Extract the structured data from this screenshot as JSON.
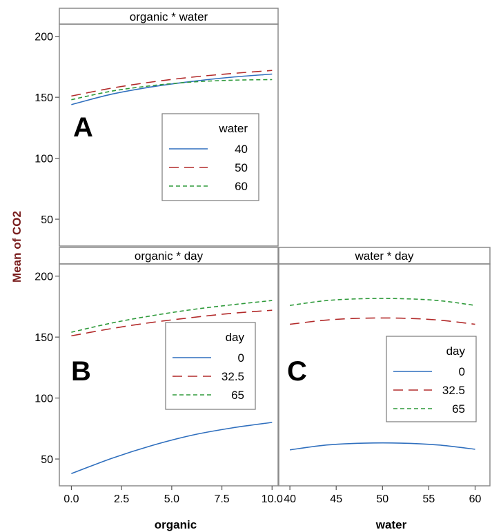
{
  "y_axis_label": "Mean of CO2",
  "x_axis_labels": {
    "organic": "organic",
    "water": "water"
  },
  "chart_data": [
    {
      "panel": "A",
      "type": "line",
      "title": "organic * water",
      "x_var": "organic",
      "xlim": [
        -0.6,
        10.3
      ],
      "ylim": [
        28,
        210
      ],
      "yticks": [
        50,
        100,
        150,
        200
      ],
      "legend": {
        "title": "water",
        "placement": "lower-right"
      },
      "series": [
        {
          "name": "40",
          "color": "#2f6fbe",
          "dash": "solid",
          "x": [
            0,
            2,
            4,
            6,
            8,
            10
          ],
          "y": [
            144,
            152.5,
            158.5,
            163,
            166.5,
            169
          ]
        },
        {
          "name": "50",
          "color": "#b22a2a",
          "dash": "long",
          "x": [
            0,
            2,
            4,
            6,
            8,
            10
          ],
          "y": [
            151,
            157.5,
            162.5,
            166.5,
            169.5,
            172
          ]
        },
        {
          "name": "60",
          "color": "#2e9a3a",
          "dash": "short",
          "x": [
            0,
            2,
            4,
            6,
            8,
            10
          ],
          "y": [
            148,
            155,
            159.5,
            162.5,
            164,
            164.5
          ]
        }
      ]
    },
    {
      "panel": "B",
      "type": "line",
      "title": "organic * day",
      "x_var": "organic",
      "xlabel": "organic",
      "xlim": [
        -0.6,
        10.3
      ],
      "ylim": [
        28,
        210
      ],
      "yticks": [
        50,
        100,
        150,
        200
      ],
      "xticks": [
        "0.0",
        "2.5",
        "5.0",
        "7.5",
        "10.0"
      ],
      "legend": {
        "title": "day",
        "placement": "right"
      },
      "series": [
        {
          "name": "0",
          "color": "#2f6fbe",
          "dash": "solid",
          "x": [
            0,
            2,
            4,
            6,
            8,
            10
          ],
          "y": [
            38,
            50.5,
            61,
            69.5,
            75.5,
            80
          ]
        },
        {
          "name": "32.5",
          "color": "#b22a2a",
          "dash": "long",
          "x": [
            0,
            2,
            4,
            6,
            8,
            10
          ],
          "y": [
            151,
            157,
            162,
            166,
            169.5,
            172
          ]
        },
        {
          "name": "65",
          "color": "#2e9a3a",
          "dash": "short",
          "x": [
            0,
            2,
            4,
            6,
            8,
            10
          ],
          "y": [
            154,
            161.5,
            167.5,
            172.5,
            176.5,
            180
          ]
        }
      ]
    },
    {
      "panel": "C",
      "type": "line",
      "title": "water * day",
      "x_var": "water",
      "xlabel": "water",
      "xlim": [
        38.8,
        61.6
      ],
      "ylim": [
        28,
        210
      ],
      "xticks": [
        "40",
        "45",
        "50",
        "55",
        "60"
      ],
      "legend": {
        "title": "day",
        "placement": "right"
      },
      "series": [
        {
          "name": "0",
          "color": "#2f6fbe",
          "dash": "solid",
          "x": [
            40,
            44,
            48,
            52,
            56,
            60
          ],
          "y": [
            57.5,
            61.5,
            63,
            63,
            61.5,
            58
          ]
        },
        {
          "name": "32.5",
          "color": "#b22a2a",
          "dash": "long",
          "x": [
            40,
            44,
            48,
            52,
            56,
            60
          ],
          "y": [
            160.5,
            164,
            165.5,
            165.5,
            164,
            160.5
          ]
        },
        {
          "name": "65",
          "color": "#2e9a3a",
          "dash": "short",
          "x": [
            40,
            44,
            48,
            52,
            56,
            60
          ],
          "y": [
            176,
            180,
            181.5,
            181.5,
            180,
            176
          ]
        }
      ]
    }
  ]
}
